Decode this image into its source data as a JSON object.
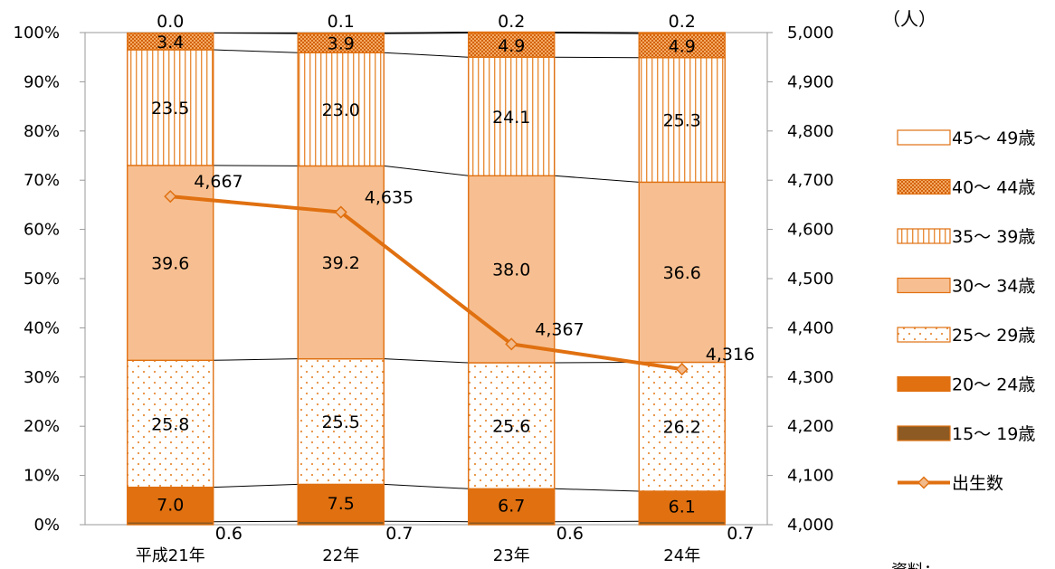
{
  "chart_data": {
    "type": "bar",
    "stacked": true,
    "categories": [
      "平成21年",
      "22年",
      "23年",
      "24年"
    ],
    "series": [
      {
        "name": "15～ 19歳",
        "values": [
          0.6,
          0.7,
          0.6,
          0.7
        ],
        "color": "#8c5a22",
        "pattern": "solid"
      },
      {
        "name": "20～ 24歳",
        "values": [
          7.0,
          7.5,
          6.7,
          6.1
        ],
        "color": "#e07010",
        "pattern": "solid"
      },
      {
        "name": "25～ 29歳",
        "values": [
          25.8,
          25.5,
          25.6,
          26.2
        ],
        "color": "#e88f3d",
        "pattern": "dots"
      },
      {
        "name": "30～ 34歳",
        "values": [
          39.6,
          39.2,
          38.0,
          36.6
        ],
        "color": "#f7bf91",
        "pattern": "solid"
      },
      {
        "name": "35～ 39歳",
        "values": [
          23.5,
          23.0,
          24.1,
          25.3
        ],
        "color": "#e88f3d",
        "pattern": "vlines"
      },
      {
        "name": "40～ 44歳",
        "values": [
          3.4,
          3.9,
          4.9,
          4.9
        ],
        "color": "#e07010",
        "pattern": "dense"
      },
      {
        "name": "45～ 49歳",
        "values": [
          0.0,
          0.1,
          0.2,
          0.2
        ],
        "color": "#ffffff",
        "pattern": "solid"
      }
    ],
    "line": {
      "name": "出生数",
      "values": [
        4667,
        4635,
        4367,
        4316
      ],
      "labels": [
        "4,667",
        "4,635",
        "4,367",
        "4,316"
      ],
      "color": "#e07010"
    },
    "y_left": {
      "ylim": [
        0,
        100
      ],
      "ticks": [
        "0%",
        "10%",
        "20%",
        "30%",
        "40%",
        "50%",
        "60%",
        "70%",
        "80%",
        "90%",
        "100%"
      ]
    },
    "y_right": {
      "ylim": [
        4000,
        5000
      ],
      "ticks": [
        "4,000",
        "4,100",
        "4,200",
        "4,300",
        "4,400",
        "4,500",
        "4,600",
        "4,700",
        "4,800",
        "4,900",
        "5,000"
      ],
      "unit": "（人）"
    },
    "legend_position": "right",
    "grid": false,
    "footer_text": "資料：..."
  }
}
